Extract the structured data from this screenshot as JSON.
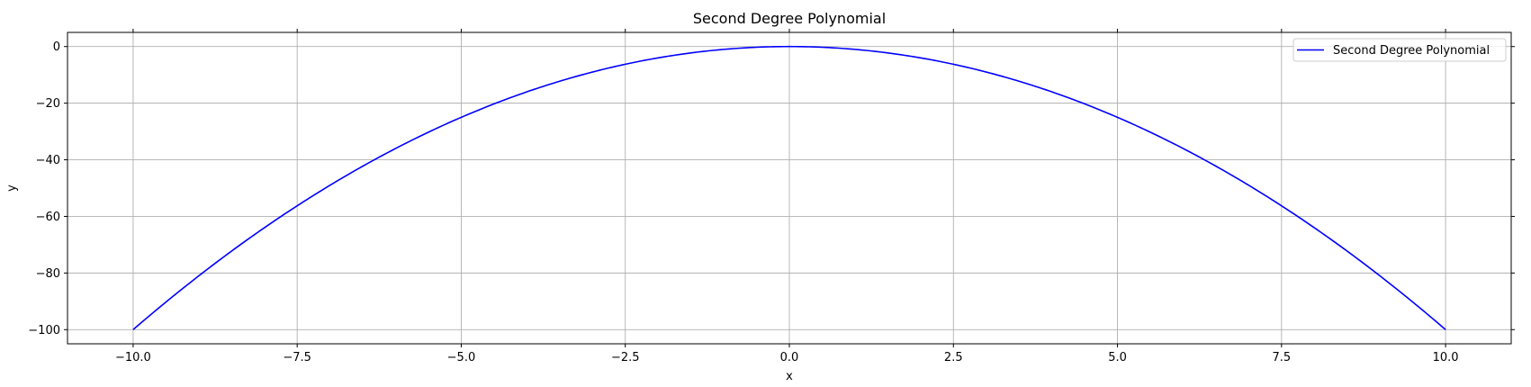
{
  "chart_data": {
    "type": "line",
    "title": "Second Degree Polynomial",
    "xlabel": "x",
    "ylabel": "y",
    "xlim": [
      -11.0,
      11.0
    ],
    "ylim": [
      -105,
      5
    ],
    "xticks": [
      -10.0,
      -7.5,
      -5.0,
      -2.5,
      0.0,
      2.5,
      5.0,
      7.5,
      10.0
    ],
    "xtick_labels": [
      "−10.0",
      "−7.5",
      "−5.0",
      "−2.5",
      "0.0",
      "2.5",
      "5.0",
      "7.5",
      "10.0"
    ],
    "yticks": [
      0,
      -20,
      -40,
      -60,
      -80,
      -100
    ],
    "ytick_labels": [
      "0",
      "−20",
      "−40",
      "−60",
      "−80",
      "−100"
    ],
    "grid": true,
    "legend_position": "upper right",
    "series": [
      {
        "name": "Second Degree Polynomial",
        "color": "#0000ff",
        "formula": "y = -x^2",
        "x": [
          -10,
          -9,
          -8,
          -7,
          -6,
          -5,
          -4,
          -3,
          -2,
          -1,
          0,
          1,
          2,
          3,
          4,
          5,
          6,
          7,
          8,
          9,
          10
        ],
        "values": [
          -100,
          -81,
          -64,
          -49,
          -36,
          -25,
          -16,
          -9,
          -4,
          -1,
          0,
          -1,
          -4,
          -9,
          -16,
          -25,
          -36,
          -49,
          -64,
          -81,
          -100
        ]
      }
    ]
  },
  "colors": {
    "line": "#0000ff",
    "grid": "#b0b0b0",
    "axis": "#000000",
    "legend_border": "#cccccc"
  }
}
